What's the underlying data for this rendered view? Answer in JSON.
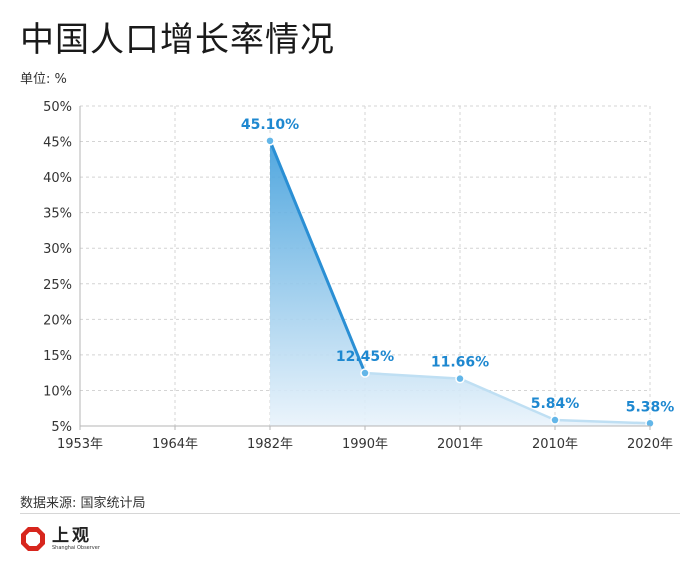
{
  "title": "中国人口增长率情况",
  "unit_label": "单位: %",
  "source": "数据来源: 国家统计局",
  "logo": {
    "name": "上观",
    "subtitle": "Shanghai Observer"
  },
  "colors": {
    "line": "#2a8fd4",
    "label": "#1e88d0",
    "point": "#63b6e8",
    "grid": "#d4d4d4",
    "axis": "#b5b5b5"
  },
  "chart_data": {
    "type": "area",
    "categories": [
      "1953年",
      "1964年",
      "1982年",
      "1990年",
      "2001年",
      "2010年",
      "2020年"
    ],
    "values": [
      null,
      null,
      45.1,
      12.45,
      11.66,
      5.84,
      5.38
    ],
    "data_labels": [
      "",
      "",
      "45.10%",
      "12.45%",
      "11.66%",
      "5.84%",
      "5.38%"
    ],
    "y_ticks": [
      "5%",
      "10%",
      "15%",
      "20%",
      "25%",
      "30%",
      "35%",
      "40%",
      "45%",
      "50%"
    ],
    "ylim": [
      5,
      50
    ],
    "grid": true,
    "xlabel": "",
    "ylabel": ""
  }
}
